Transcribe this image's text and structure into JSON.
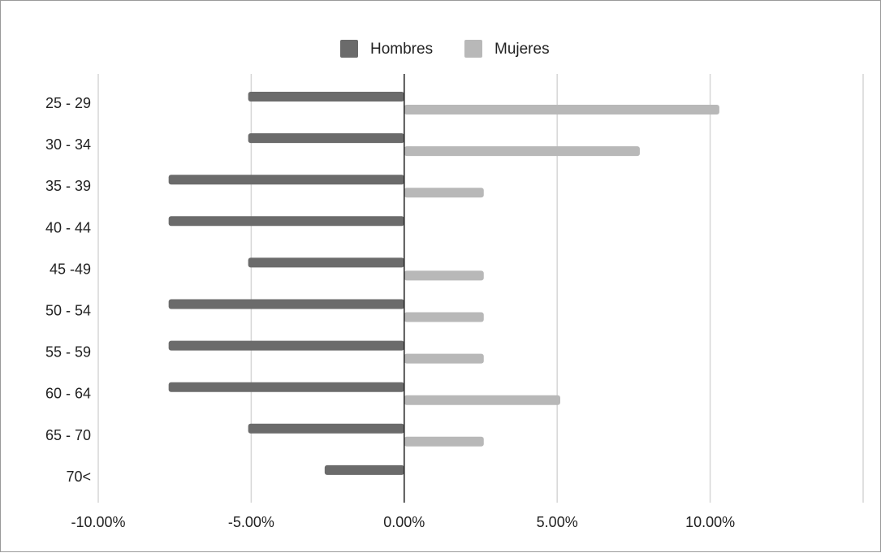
{
  "chart_data": {
    "type": "bar",
    "orientation": "horizontal",
    "categories": [
      "25 - 29",
      "30 - 34",
      "35 - 39",
      "40 - 44",
      "45 -49",
      "50 - 54",
      "55 - 59",
      "60 - 64",
      "65 - 70",
      "70<"
    ],
    "series": [
      {
        "name": "Hombres",
        "color": "#6b6b6b",
        "values": [
          -5.1,
          -5.1,
          -7.7,
          -7.7,
          -5.1,
          -7.7,
          -7.7,
          -7.7,
          -5.1,
          -2.6
        ]
      },
      {
        "name": "Mujeres",
        "color": "#b8b8b8",
        "values": [
          10.3,
          7.7,
          2.6,
          0,
          2.6,
          2.6,
          2.6,
          5.1,
          2.6,
          0
        ]
      }
    ],
    "xlim": [
      -10,
      15
    ],
    "x_ticks": [
      -10,
      -5,
      0,
      5,
      10
    ],
    "x_tick_labels": [
      "-10.00%",
      "-5.00%",
      "0.00%",
      "5.00%",
      "10.00%"
    ],
    "grid": true,
    "legend_position": "top"
  }
}
